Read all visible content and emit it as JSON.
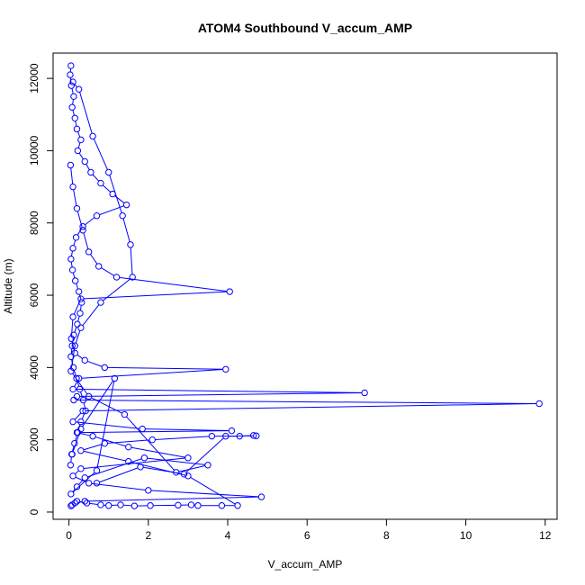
{
  "chart_data": {
    "type": "line",
    "title": "ATOM4 Southbound V_accum_AMP",
    "xlabel": "V_accum_AMP",
    "ylabel": "Altitude (m)",
    "xlim": [
      -0.4,
      12.3
    ],
    "ylim": [
      -200,
      12700
    ],
    "xticks": [
      0,
      2,
      4,
      6,
      8,
      10,
      12
    ],
    "yticks": [
      0,
      2000,
      4000,
      6000,
      8000,
      10000,
      12000
    ],
    "grid": false,
    "legend": "none",
    "marker": "open-circle",
    "series_color": "#0000ff",
    "series": [
      {
        "x": [
          0.05,
          0.03,
          0.06,
          0.12,
          0.08,
          0.15,
          0.2,
          0.3,
          0.22,
          0.4,
          0.55,
          0.8,
          1.1,
          1.45,
          0.7,
          0.35,
          0.18,
          0.1,
          0.05,
          0.09,
          0.16,
          0.25,
          0.32,
          0.28,
          0.21,
          0.12,
          0.08,
          0.05,
          0.11,
          0.19,
          0.27,
          0.36,
          0.42,
          0.3,
          0.22,
          0.14,
          0.07,
          0.04
        ],
        "y": [
          12350,
          12100,
          11800,
          11500,
          11200,
          10900,
          10600,
          10300,
          10000,
          9700,
          9400,
          9100,
          8800,
          8500,
          8200,
          7900,
          7600,
          7300,
          7000,
          6700,
          6400,
          6100,
          5800,
          5500,
          5200,
          4900,
          4600,
          4300,
          4000,
          3700,
          3400,
          3100,
          2800,
          2500,
          2200,
          1900,
          1600,
          1300
        ]
      },
      {
        "x": [
          0.04,
          0.1,
          0.2,
          0.35,
          0.5,
          0.75,
          1.2,
          4.05,
          0.3,
          0.1,
          0.06,
          0.15,
          0.4,
          0.9,
          3.95,
          0.25,
          0.1,
          7.45,
          0.2,
          0.12,
          11.85,
          0.35,
          0.1,
          1.85,
          4.1,
          0.2,
          0.6,
          1.5,
          3.0,
          0.3,
          0.1,
          0.5,
          2.0,
          4.85,
          0.4,
          0.15,
          0.08,
          0.05
        ],
        "y": [
          9600,
          9000,
          8400,
          7800,
          7200,
          6800,
          6500,
          6100,
          5900,
          5400,
          4800,
          4400,
          4200,
          4000,
          3950,
          3700,
          3400,
          3300,
          3200,
          3100,
          3000,
          2800,
          2500,
          2300,
          2250,
          2200,
          2100,
          1800,
          1500,
          1200,
          1000,
          800,
          600,
          420,
          300,
          250,
          200,
          170
        ]
      },
      {
        "x": [
          0.2,
          0.45,
          0.8,
          1.0,
          1.3,
          1.65,
          2.05,
          2.75,
          3.08,
          3.25,
          3.85,
          4.25,
          3.0,
          1.5,
          0.3,
          0.9,
          2.1,
          3.6,
          4.3,
          4.65,
          4.72,
          3.95,
          2.9,
          1.8,
          0.7
        ],
        "y": [
          300,
          250,
          200,
          180,
          200,
          170,
          180,
          190,
          200,
          180,
          180,
          180,
          1000,
          1400,
          1700,
          1900,
          2000,
          2100,
          2100,
          2120,
          2110,
          2100,
          1050,
          1250,
          800
        ]
      },
      {
        "x": [
          0.1,
          0.25,
          0.6,
          1.0,
          1.35,
          1.55,
          1.6,
          0.8,
          0.3,
          0.15,
          0.05,
          0.5,
          1.4,
          2.7,
          3.5,
          1.9,
          0.4,
          0.2,
          0.05,
          0.7,
          1.15,
          0.3,
          0.08
        ],
        "y": [
          11900,
          11700,
          10400,
          9400,
          8200,
          7400,
          6500,
          5800,
          5100,
          4600,
          3900,
          3200,
          2700,
          1100,
          1300,
          1500,
          950,
          700,
          500,
          1150,
          3700,
          2300,
          1600
        ]
      }
    ]
  }
}
